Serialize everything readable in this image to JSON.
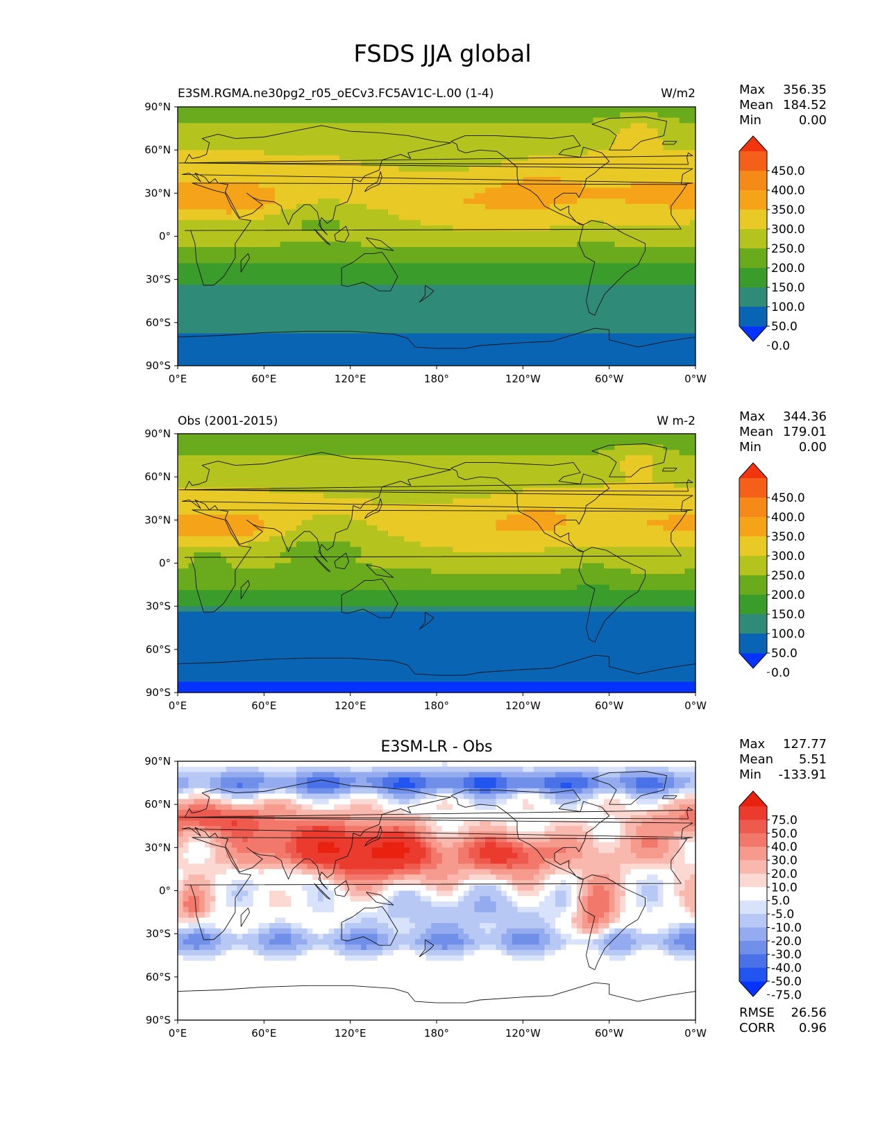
{
  "figure": {
    "title": "FSDS JJA global"
  },
  "colors": {
    "fsds_levels": [
      "#0433ff",
      "#0a64b4",
      "#2f8a78",
      "#3a9c2b",
      "#6aaa1d",
      "#b4c31e",
      "#e9c925",
      "#f5a319",
      "#f58a18",
      "#f4601a",
      "#f2350f"
    ],
    "diff_levels": [
      "#0433ff",
      "#2254f0",
      "#4a71e8",
      "#6f8fe9",
      "#94acef",
      "#b7c8f5",
      "#d8e2fa",
      "#ffffff",
      "#fbd8d2",
      "#f8b8ad",
      "#f59a8c",
      "#f2786b",
      "#ee5a4e",
      "#eb3b2e",
      "#e8220f"
    ],
    "coastline": "#111111"
  },
  "axes": {
    "lat_ticks": [
      "90°N",
      "60°N",
      "30°N",
      "0°",
      "30°S",
      "60°S",
      "90°S"
    ],
    "lon_ticks": [
      "0°E",
      "60°E",
      "120°E",
      "180°",
      "120°W",
      "60°W",
      "0°W"
    ]
  },
  "panels": [
    {
      "left_label": "E3SM.RGMA.ne30pg2_r05_oECv3.FC5AV1C-L.00 (1-4)",
      "right_label": "W/m2",
      "center_label": "",
      "stats": [
        {
          "name": "Max",
          "value": "356.35"
        },
        {
          "name": "Mean",
          "value": "184.52"
        },
        {
          "name": "Min",
          "value": "0.00"
        }
      ],
      "colorbar_labels": [
        "450.0",
        "400.0",
        "350.0",
        "300.0",
        "250.0",
        "200.0",
        "150.0",
        "100.0",
        "50.0",
        "0.0"
      ],
      "extra_stats": []
    },
    {
      "left_label": "Obs (2001-2015)",
      "right_label": "W m-2",
      "center_label": "",
      "stats": [
        {
          "name": "Max",
          "value": "344.36"
        },
        {
          "name": "Mean",
          "value": "179.01"
        },
        {
          "name": "Min",
          "value": "0.00"
        }
      ],
      "colorbar_labels": [
        "450.0",
        "400.0",
        "350.0",
        "300.0",
        "250.0",
        "200.0",
        "150.0",
        "100.0",
        "50.0",
        "0.0"
      ],
      "extra_stats": []
    },
    {
      "left_label": "",
      "right_label": "",
      "center_label": "E3SM-LR - Obs",
      "stats": [
        {
          "name": "Max",
          "value": "127.77"
        },
        {
          "name": "Mean",
          "value": "5.51"
        },
        {
          "name": "Min",
          "value": "-133.91"
        }
      ],
      "colorbar_labels": [
        "75.0",
        "50.0",
        "40.0",
        "30.0",
        "20.0",
        "10.0",
        "5.0",
        "-5.0",
        "-10.0",
        "-20.0",
        "-30.0",
        "-40.0",
        "-50.0",
        "-75.0"
      ],
      "extra_stats": [
        {
          "name": "RMSE",
          "value": "26.56"
        },
        {
          "name": "CORR",
          "value": "0.96"
        }
      ]
    }
  ]
}
